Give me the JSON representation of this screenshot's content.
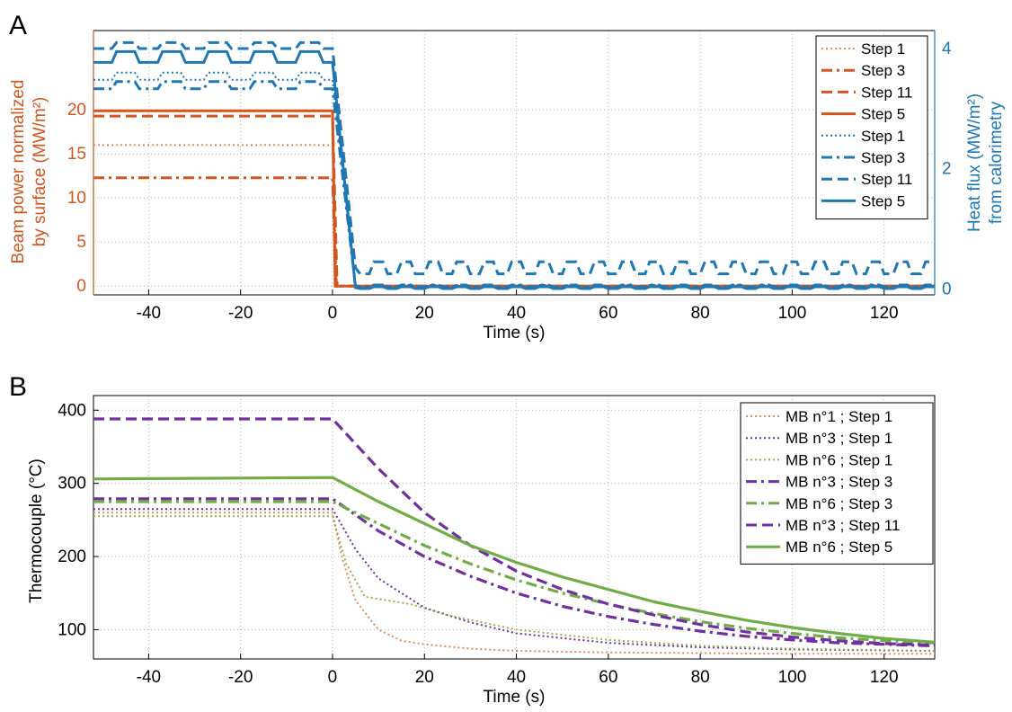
{
  "chart_data": [
    {
      "panel": "A",
      "type": "line",
      "xlabel": "Time (s)",
      "ylabel_left": "Beam power normalized\nby surface (MW/m²)",
      "ylabel_right": "Heat flux (MW/m²)\nfrom calorimetry",
      "xlim": [
        -52,
        131
      ],
      "ylim_left": [
        -1,
        29
      ],
      "ylim_right": [
        -0.1,
        4.3
      ],
      "xticks": [
        -40,
        -20,
        0,
        20,
        40,
        60,
        80,
        100,
        120
      ],
      "yticks_left": [
        0,
        5,
        10,
        15,
        20
      ],
      "yticks_right": [
        0,
        2,
        4
      ],
      "grid": true,
      "legend_position": "top-right",
      "colors": {
        "left_axis": "#D2561E",
        "right_axis": "#1F77B4"
      },
      "series": [
        {
          "name": "Step 1",
          "axis": "left",
          "style": "dotted",
          "color": "#D98F5E",
          "x": [
            -52,
            0,
            1,
            131
          ],
          "y": [
            16,
            16,
            0,
            0
          ]
        },
        {
          "name": "Step 3",
          "axis": "left",
          "style": "dashdot",
          "color": "#D2561E",
          "x": [
            -52,
            0,
            0.8,
            131
          ],
          "y": [
            12.3,
            12.3,
            0,
            0
          ]
        },
        {
          "name": "Step 11",
          "axis": "left",
          "style": "dashed",
          "color": "#D2561E",
          "x": [
            -52,
            0,
            1,
            131
          ],
          "y": [
            19.3,
            19.3,
            0,
            0
          ]
        },
        {
          "name": "Step 5",
          "axis": "left",
          "style": "solid",
          "color": "#D2561E",
          "x": [
            -52,
            0,
            0.6,
            131
          ],
          "y": [
            19.9,
            19.9,
            0,
            0
          ]
        },
        {
          "name": "Step 1",
          "axis": "right",
          "style": "dotted",
          "color": "#1F77B4",
          "x": [
            -52,
            0,
            5,
            131
          ],
          "y": [
            3.6,
            3.6,
            0.05,
            0.05
          ]
        },
        {
          "name": "Step 3",
          "axis": "right",
          "style": "dashdot",
          "color": "#1F77B4",
          "x": [
            -52,
            0,
            5,
            131
          ],
          "y": [
            3.45,
            3.45,
            0.05,
            0.05
          ]
        },
        {
          "name": "Step 11",
          "axis": "right",
          "style": "dashed",
          "color": "#1F77B4",
          "x": [
            -52,
            0,
            5,
            131
          ],
          "y": [
            4.1,
            4.1,
            0.35,
            0.35
          ]
        },
        {
          "name": "Step 5",
          "axis": "right",
          "style": "solid",
          "color": "#1F77B4",
          "x": [
            -52,
            0,
            5,
            131
          ],
          "y": [
            3.95,
            3.95,
            0.02,
            0.02
          ]
        }
      ]
    },
    {
      "panel": "B",
      "type": "line",
      "xlabel": "Time (s)",
      "ylabel": "Thermocouple (°C)",
      "xlim": [
        -52,
        131
      ],
      "ylim": [
        60,
        420
      ],
      "xticks": [
        -40,
        -20,
        0,
        20,
        40,
        60,
        80,
        100,
        120
      ],
      "yticks": [
        100,
        200,
        300,
        400
      ],
      "grid": true,
      "legend_position": "top-right",
      "colors": {
        "purple": "#7030A0",
        "green": "#70AD47",
        "orange": "#D98F5E"
      },
      "series": [
        {
          "name": "MB n°1 ; Step 1",
          "style": "dotted",
          "color": "#D98F5E",
          "x": [
            -52,
            0,
            2,
            5,
            10,
            15,
            20,
            30,
            40,
            60,
            80,
            100,
            131
          ],
          "y": [
            260,
            260,
            200,
            140,
            100,
            85,
            80,
            74,
            71,
            69,
            68,
            67,
            67
          ]
        },
        {
          "name": "MB n°3 ; Step 1",
          "style": "dotted",
          "color": "#7030A0",
          "x": [
            -52,
            0,
            5,
            10,
            20,
            30,
            40,
            60,
            80,
            100,
            131
          ],
          "y": [
            265,
            265,
            210,
            170,
            130,
            110,
            95,
            82,
            76,
            73,
            71
          ]
        },
        {
          "name": "MB n°6 ; Step 1",
          "style": "dotted",
          "color": "#9BAF4E",
          "x": [
            -52,
            0,
            3,
            7,
            12,
            17,
            25,
            40,
            60,
            80,
            100,
            131
          ],
          "y": [
            255,
            255,
            190,
            145,
            140,
            135,
            120,
            100,
            86,
            78,
            74,
            71
          ]
        },
        {
          "name": "MB n°3 ; Step 3",
          "style": "dashdot",
          "color": "#7030A0",
          "x": [
            -52,
            0,
            10,
            20,
            30,
            40,
            50,
            60,
            70,
            80,
            90,
            100,
            110,
            120,
            131
          ],
          "y": [
            279,
            279,
            235,
            200,
            173,
            150,
            132,
            118,
            107,
            98,
            91,
            86,
            82,
            80,
            78
          ]
        },
        {
          "name": "MB n°6 ; Step 3",
          "style": "dashdot",
          "color": "#70AD47",
          "x": [
            -52,
            0,
            10,
            20,
            30,
            40,
            50,
            60,
            70,
            80,
            90,
            100,
            110,
            120,
            131
          ],
          "y": [
            275,
            275,
            245,
            215,
            190,
            168,
            150,
            135,
            122,
            111,
            102,
            95,
            89,
            85,
            82
          ]
        },
        {
          "name": "MB n°3 ; Step 11",
          "style": "dashed",
          "color": "#7030A0",
          "x": [
            -52,
            0,
            10,
            20,
            30,
            40,
            50,
            60,
            70,
            80,
            90,
            100,
            110,
            120,
            131
          ],
          "y": [
            388,
            388,
            320,
            260,
            215,
            180,
            155,
            135,
            120,
            107,
            97,
            90,
            85,
            81,
            79
          ]
        },
        {
          "name": "MB n°6 ; Step 5",
          "style": "solid",
          "color": "#70AD47",
          "x": [
            -52,
            0,
            10,
            20,
            30,
            40,
            50,
            60,
            70,
            80,
            90,
            100,
            110,
            120,
            131
          ],
          "y": [
            306,
            308,
            275,
            245,
            215,
            192,
            172,
            155,
            138,
            125,
            113,
            103,
            95,
            88,
            83
          ]
        }
      ]
    }
  ]
}
